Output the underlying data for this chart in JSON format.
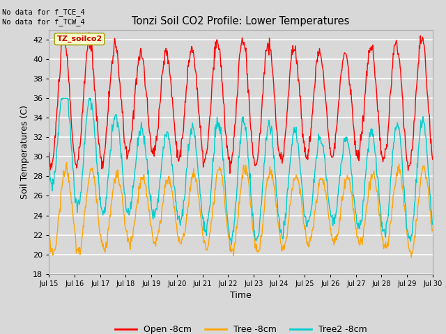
{
  "title": "Tonzi Soil CO2 Profile: Lower Temperatures",
  "xlabel": "Time",
  "ylabel": "Soil Temperatures (C)",
  "ylim": [
    18,
    43
  ],
  "yticks": [
    18,
    20,
    22,
    24,
    26,
    28,
    30,
    32,
    34,
    36,
    38,
    40,
    42
  ],
  "xtick_labels": [
    "Jul 15",
    "Jul 16",
    "Jul 17",
    "Jul 18",
    "Jul 19",
    "Jul 20",
    "Jul 21",
    "Jul 22",
    "Jul 23",
    "Jul 24",
    "Jul 25",
    "Jul 26",
    "Jul 27",
    "Jul 28",
    "Jul 29",
    "Jul 30"
  ],
  "background_color": "#d8d8d8",
  "plot_bg_color": "#d8d8d8",
  "grid_color": "#ffffff",
  "no_data_text": [
    "No data for f_TCE_4",
    "No data for f_TCW_4"
  ],
  "legend_label_text": "TZ_soilco2",
  "series_colors": [
    "#ff0000",
    "#ffa500",
    "#00cccc"
  ],
  "series_labels": [
    "Open -8cm",
    "Tree -8cm",
    "Tree2 -8cm"
  ],
  "n_days": 15,
  "pts_per_day": 48,
  "red_mean": 35.5,
  "red_amp": 5.8,
  "orange_mean": 24.5,
  "orange_amp": 3.8,
  "cyan_mean": 27.5,
  "cyan_amp": 5.2
}
